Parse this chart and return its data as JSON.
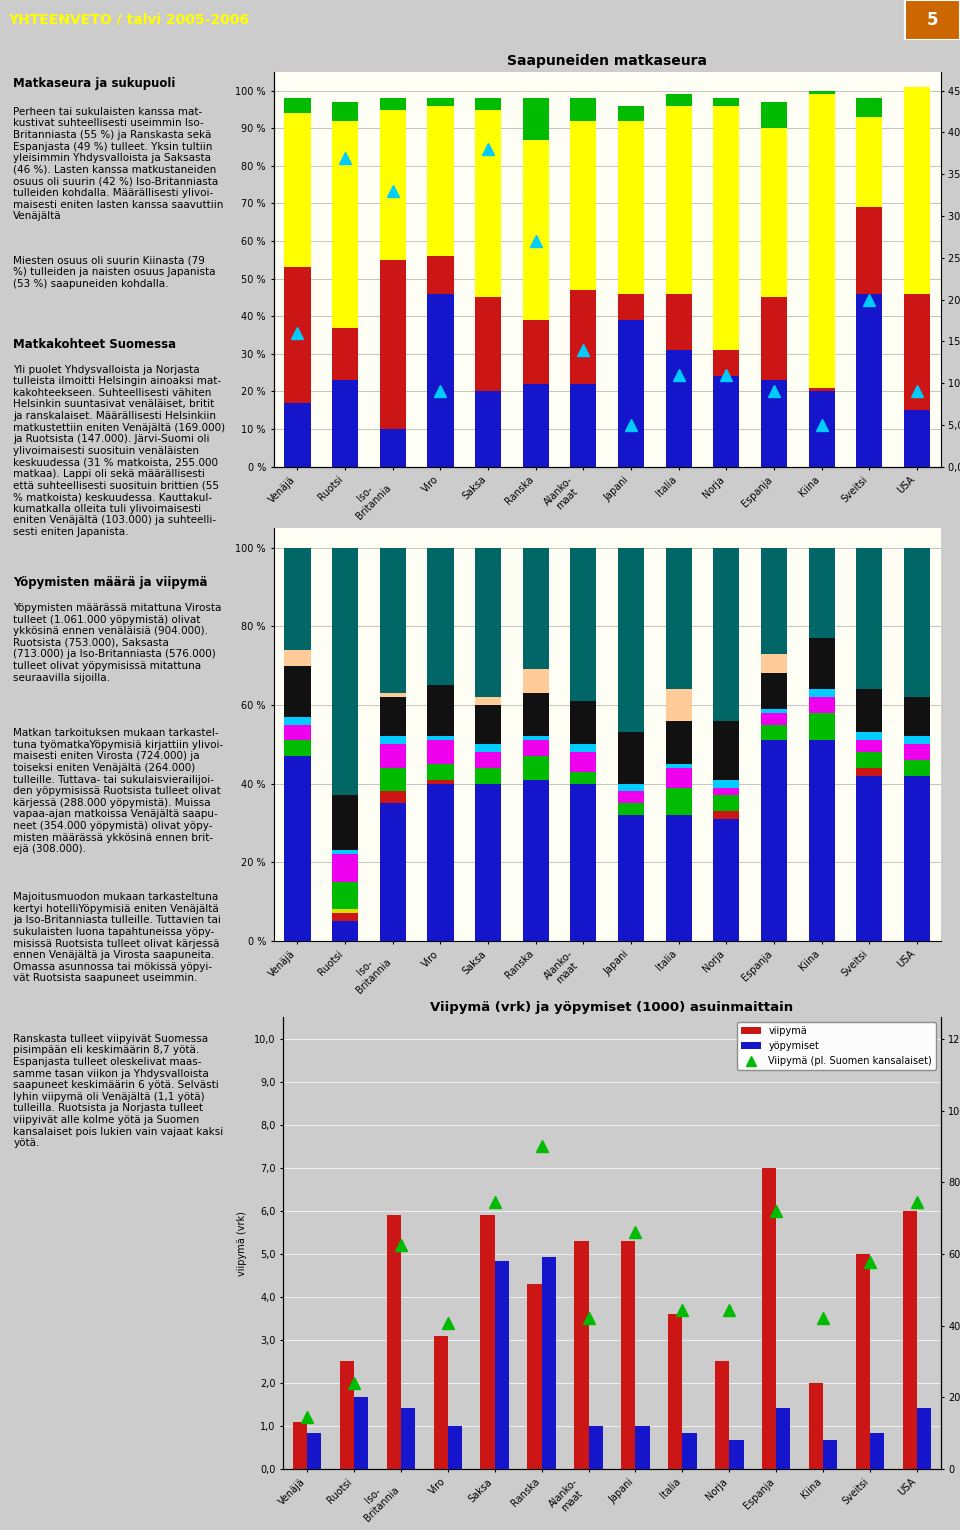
{
  "title_header": "YHTEENVETO / talvi 2005-2006",
  "page_number": "5",
  "chart1_title": "Saapuneiden matkaseura",
  "countries": [
    "Venäjä",
    "Ruotsi",
    "Iso-\nBritannia",
    "Viro",
    "Saksa",
    "Ranska",
    "Alanko-\nmaat",
    "Japani",
    "Italia",
    "Norja",
    "Espanja",
    "Kiina",
    "Sveitsi",
    "USA"
  ],
  "chart1_yksin": [
    17,
    23,
    10,
    46,
    20,
    22,
    22,
    39,
    31,
    24,
    23,
    20,
    46,
    15
  ],
  "chart1_perhe": [
    36,
    14,
    45,
    10,
    25,
    17,
    25,
    7,
    15,
    7,
    22,
    1,
    23,
    31
  ],
  "chart1_muu": [
    41,
    55,
    40,
    40,
    50,
    48,
    45,
    46,
    50,
    65,
    45,
    78,
    24,
    55
  ],
  "chart1_useita": [
    4,
    5,
    3,
    2,
    3,
    11,
    6,
    4,
    3,
    2,
    7,
    1,
    5,
    0
  ],
  "chart1_lapsia": [
    16,
    37,
    33,
    9,
    38,
    27,
    14,
    5,
    11,
    11,
    9,
    5,
    20,
    9
  ],
  "chart1_yksin_color": "#1515CC",
  "chart1_perhe_color": "#CC1515",
  "chart1_muu_color": "#FFFF00",
  "chart1_useita_color": "#00BB00",
  "chart1_lapsia_color": "#00CCFF",
  "chart2_countries": [
    "Venäjä",
    "Ruotsi",
    "Iso-\nBritannia",
    "Viro",
    "Saksa",
    "Ranska",
    "Alanko-\nmaat",
    "Japani",
    "Italia",
    "Norja",
    "Espanja",
    "Kiina",
    "Sveitsi",
    "USA"
  ],
  "chart2_helsinki": [
    47,
    5,
    35,
    40,
    40,
    41,
    40,
    32,
    32,
    31,
    51,
    51,
    42,
    42
  ],
  "chart2_uusimaa": [
    0,
    2,
    3,
    1,
    0,
    0,
    0,
    0,
    0,
    2,
    0,
    0,
    2,
    0
  ],
  "chart2_lansi": [
    0,
    1,
    0,
    0,
    0,
    0,
    0,
    0,
    0,
    0,
    0,
    0,
    0,
    0
  ],
  "chart2_hame": [
    4,
    7,
    6,
    4,
    4,
    6,
    3,
    3,
    7,
    4,
    4,
    7,
    4,
    4
  ],
  "chart2_jarvi": [
    4,
    7,
    6,
    6,
    4,
    4,
    5,
    3,
    5,
    2,
    3,
    4,
    3,
    4
  ],
  "chart2_lappi": [
    2,
    1,
    2,
    1,
    2,
    1,
    2,
    2,
    1,
    2,
    1,
    2,
    2,
    2
  ],
  "chart2_kaksi": [
    13,
    14,
    10,
    13,
    10,
    11,
    11,
    13,
    11,
    15,
    9,
    13,
    11,
    10
  ],
  "chart2_monta": [
    4,
    0,
    1,
    0,
    2,
    6,
    0,
    0,
    8,
    0,
    5,
    0,
    0,
    0
  ],
  "chart2_ei": [
    26,
    63,
    37,
    35,
    38,
    31,
    39,
    47,
    36,
    44,
    27,
    23,
    36,
    38
  ],
  "chart2_helsinki_color": "#1515CC",
  "chart2_uusimaa_color": "#CC1515",
  "chart2_lansi_color": "#DDDD00",
  "chart2_hame_color": "#00BB00",
  "chart2_jarvi_color": "#EE00EE",
  "chart2_lappi_color": "#00CCFF",
  "chart2_kaksi_color": "#111111",
  "chart2_monta_color": "#FFCC99",
  "chart2_ei_color": "#006666",
  "chart3_title": "Viipymä (vrk) ja yöpymiset (1000) asuinmaittain",
  "chart3_countries": [
    "Venäjä",
    "Ruotsi",
    "Iso-\nBritannia",
    "Viro",
    "Saksa",
    "Ranska",
    "Alanko-\nmaat",
    "Japani",
    "Italia",
    "Norja",
    "Espanja",
    "Kiina",
    "Sveitsi",
    "USA"
  ],
  "chart3_viipyma": [
    1.1,
    2.5,
    5.9,
    3.1,
    5.9,
    4.3,
    5.3,
    5.3,
    3.6,
    2.5,
    7.0,
    2.0,
    5.0,
    6.0
  ],
  "chart3_yopymiset": [
    100,
    200,
    170,
    120,
    580,
    590,
    120,
    120,
    100,
    80,
    170,
    80,
    100,
    170
  ],
  "chart3_viipyma_pl": [
    1.2,
    2.0,
    5.2,
    3.4,
    6.2,
    7.5,
    3.5,
    5.5,
    3.7,
    3.7,
    6.0,
    3.5,
    4.8,
    6.2
  ],
  "chart3_viipyma_color": "#CC1515",
  "chart3_yopymiset_color": "#1515CC",
  "chart3_viipyma_pl_color": "#00BB00",
  "header_bg": "#1515BB",
  "header_text_color": "#FFFF00",
  "page_num_bg": "#CC6600",
  "page_num_color": "#FFFFFF",
  "chart_area_bg": "#FFFEF5",
  "left_bg": "#FFFFFF",
  "chart3_plot_bg": "#CCCCCC"
}
